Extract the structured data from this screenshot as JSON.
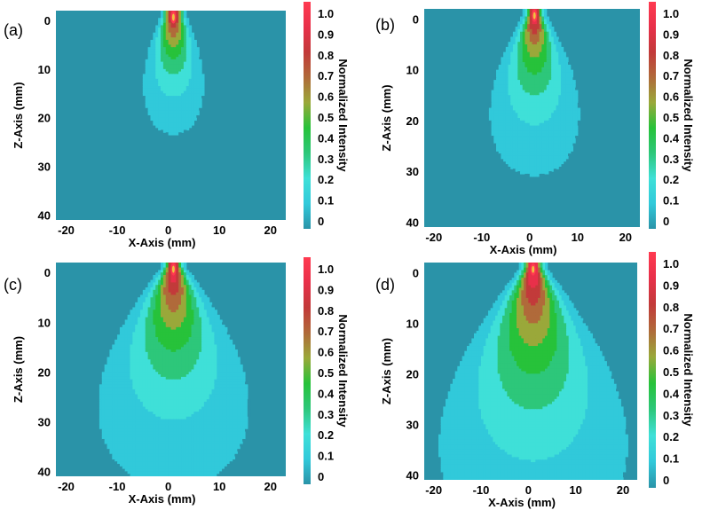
{
  "chart_data": [
    {
      "type": "heatmap",
      "panel_label": "(a)",
      "xlabel": "X-Axis (mm)",
      "ylabel": "Z-Axis (mm)",
      "colorbar_label": "Normalized Intensity",
      "xlim": [
        -22,
        23
      ],
      "ylim": [
        -2,
        41
      ],
      "x_ticks": [
        -20,
        -10,
        0,
        10,
        20
      ],
      "y_ticks": [
        0,
        10,
        20,
        30,
        40
      ],
      "colorbar_ticks": [
        "1.0",
        "0.9",
        "0.8",
        "0.7",
        "0.6",
        "0.5",
        "0.4",
        "0.3",
        "0.2",
        "0.1",
        "0"
      ],
      "peak": {
        "x": 1,
        "z": -1,
        "value": 1.0
      },
      "beam": {
        "focus_width_mm": 1.2,
        "spread": 0.22,
        "decay": 0.09,
        "sidelobe_level": 0.0
      }
    },
    {
      "type": "heatmap",
      "panel_label": "(b)",
      "xlabel": "X-Axis (mm)",
      "ylabel": "Z-Axis (mm)",
      "colorbar_label": "Normalized Intensity",
      "xlim": [
        -22,
        23
      ],
      "ylim": [
        -2,
        41
      ],
      "x_ticks": [
        -20,
        -10,
        0,
        10,
        20
      ],
      "y_ticks": [
        0,
        10,
        20,
        30,
        40
      ],
      "colorbar_ticks": [
        "1.0",
        "0.9",
        "0.8",
        "0.7",
        "0.6",
        "0.5",
        "0.4",
        "0.3",
        "0.2",
        "0.1",
        "0"
      ],
      "peak": {
        "x": 1,
        "z": -1,
        "value": 1.0
      },
      "beam": {
        "focus_width_mm": 1.0,
        "spread": 0.28,
        "decay": 0.07,
        "sidelobe_level": 0.05
      }
    },
    {
      "type": "heatmap",
      "panel_label": "(c)",
      "xlabel": "X-Axis (mm)",
      "ylabel": "Z-Axis (mm)",
      "colorbar_label": "Normalized Intensity",
      "xlim": [
        -22,
        23
      ],
      "ylim": [
        -2,
        41
      ],
      "x_ticks": [
        -20,
        -10,
        0,
        10,
        20
      ],
      "y_ticks": [
        0,
        10,
        20,
        30,
        40
      ],
      "colorbar_ticks": [
        "1.0",
        "0.9",
        "0.8",
        "0.7",
        "0.6",
        "0.5",
        "0.4",
        "0.3",
        "0.2",
        "0.1",
        "0"
      ],
      "peak": {
        "x": 1,
        "z": -1,
        "value": 1.0
      },
      "beam": {
        "focus_width_mm": 1.0,
        "spread": 0.32,
        "decay": 0.05,
        "sidelobe_level": 0.09
      }
    },
    {
      "type": "heatmap",
      "panel_label": "(d)",
      "xlabel": "X-Axis (mm)",
      "ylabel": "Z-Axis (mm)",
      "colorbar_label": "Normalized Intensity",
      "xlim": [
        -22,
        23
      ],
      "ylim": [
        -2,
        41
      ],
      "x_ticks": [
        -20,
        -10,
        0,
        10,
        20
      ],
      "y_ticks": [
        0,
        10,
        20,
        30,
        40
      ],
      "colorbar_ticks": [
        "1.0",
        "0.9",
        "0.8",
        "0.7",
        "0.6",
        "0.5",
        "0.4",
        "0.3",
        "0.2",
        "0.1",
        "0"
      ],
      "peak": {
        "x": 1,
        "z": -1,
        "value": 1.0
      },
      "beam": {
        "focus_width_mm": 1.1,
        "spread": 0.35,
        "decay": 0.04,
        "sidelobe_level": 0.12
      }
    }
  ],
  "colormap": {
    "stops": [
      "#2a93a8",
      "#31c9da",
      "#3fe0d8",
      "#2dc77a",
      "#27c23a",
      "#9aa83a",
      "#b06a3a",
      "#c23a3a",
      "#e8304a",
      "#ff3a50"
    ],
    "background": "#2a93a8"
  }
}
